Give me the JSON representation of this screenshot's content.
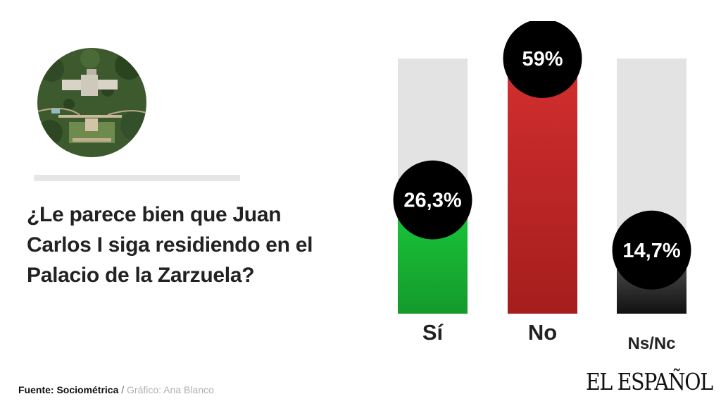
{
  "question": {
    "lines": [
      "¿Le parece bien que Juan",
      "Carlos I siga residiendo en el",
      "Palacio de la Zarzuela?"
    ]
  },
  "footer": {
    "source": "Fuente: Sociométrica",
    "separator": " / ",
    "credit": "Gráfico: Ana Blanco"
  },
  "brand": {
    "logo": "EL ESPAÑOL"
  },
  "photo": {
    "icon": "aerial-palace-photo"
  },
  "colors": {
    "si": "#22b83a",
    "no": "#c62828",
    "nsnc": "#2e2e2e",
    "track": "#e3e3e3",
    "badge": "#000000"
  },
  "chart_data": {
    "type": "bar",
    "categories": [
      "Sí",
      "No",
      "Ns/Nc"
    ],
    "values": [
      26.3,
      59,
      14.7
    ],
    "value_labels": [
      "26,3%",
      "59%",
      "14,7%"
    ],
    "ylim": [
      0,
      59
    ],
    "title": "",
    "xlabel": "",
    "ylabel": "",
    "grid": false,
    "legend": "none"
  }
}
